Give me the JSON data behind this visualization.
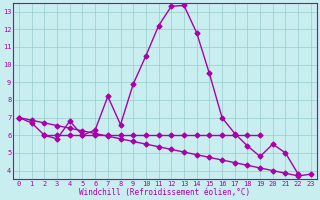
{
  "xlabel": "Windchill (Refroidissement éolien,°C)",
  "background_color": "#c8eef0",
  "line_color": "#aa00aa",
  "curve1_x": [
    0,
    1,
    2,
    3,
    4,
    5,
    6,
    7,
    8,
    9,
    10,
    11,
    12,
    13,
    14,
    15,
    16,
    17,
    18,
    19,
    20,
    21,
    22
  ],
  "curve1_y": [
    7.0,
    6.7,
    6.0,
    5.8,
    6.8,
    6.0,
    6.3,
    8.2,
    6.6,
    8.9,
    10.5,
    12.2,
    13.3,
    13.35,
    11.8,
    9.5,
    7.0,
    6.1,
    5.4,
    4.8,
    5.5,
    5.0,
    3.8
  ],
  "curve2_x": [
    2,
    3,
    4,
    5,
    6,
    7,
    8,
    9,
    10,
    11,
    12,
    13,
    14,
    15,
    16,
    17,
    18,
    19
  ],
  "curve2_y": [
    6.0,
    6.0,
    6.0,
    6.0,
    6.0,
    6.0,
    6.0,
    6.0,
    6.0,
    6.0,
    6.0,
    6.0,
    6.0,
    6.0,
    6.0,
    6.0,
    6.0,
    6.0
  ],
  "curve3_x": [
    0,
    1,
    2,
    3,
    4,
    5,
    6,
    7,
    8,
    9,
    10,
    11,
    12,
    13,
    14,
    15,
    16,
    17,
    18,
    19,
    20,
    21,
    22,
    23
  ],
  "curve3_y": [
    7.0,
    6.85,
    6.7,
    6.55,
    6.4,
    6.25,
    6.1,
    5.95,
    5.8,
    5.65,
    5.5,
    5.35,
    5.2,
    5.05,
    4.9,
    4.75,
    4.6,
    4.45,
    4.3,
    4.15,
    4.0,
    3.85,
    3.7,
    3.8
  ],
  "ylim": [
    3.5,
    13.5
  ],
  "xlim": [
    -0.5,
    23.5
  ],
  "yticks": [
    4,
    5,
    6,
    7,
    8,
    9,
    10,
    11,
    12,
    13
  ],
  "xticks": [
    0,
    1,
    2,
    3,
    4,
    5,
    6,
    7,
    8,
    9,
    10,
    11,
    12,
    13,
    14,
    15,
    16,
    17,
    18,
    19,
    20,
    21,
    22,
    23
  ],
  "grid_color": "#99cccc",
  "markersize": 2.5,
  "linewidth": 1.0,
  "tick_fontsize": 5.0,
  "label_fontsize": 5.5
}
